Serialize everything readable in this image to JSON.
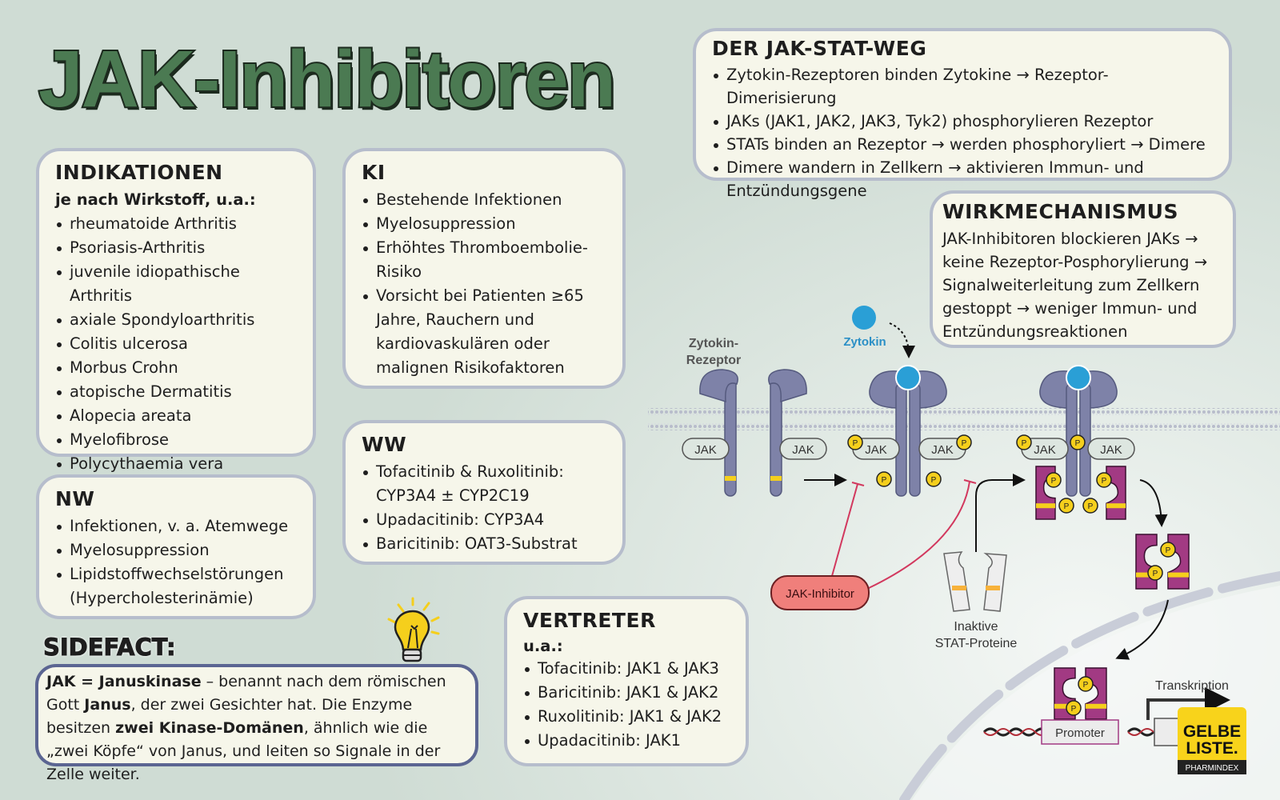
{
  "title": "JAK-Inhibitoren",
  "indikationen": {
    "heading": "INDIKATIONEN",
    "subheading": "je nach Wirkstoff, u.a.:",
    "items": [
      "rheumatoide Arthritis",
      "Psoriasis-Arthritis",
      "juvenile idiopathische Arthritis",
      "axiale Spondyloarthritis",
      "Colitis ulcerosa",
      "Morbus Crohn",
      "atopische Dermatitis",
      "Alopecia areata",
      "Myelofibrose",
      "Polycythaemia vera"
    ]
  },
  "ki": {
    "heading": "KI",
    "items": [
      "Bestehende Infektionen",
      "Myelosuppression",
      "Erhöhtes Thromboembolie-Risiko",
      "Vorsicht bei Patienten ≥65 Jahre, Rauchern und kardiovaskulären oder malignen Risikofaktoren"
    ]
  },
  "nw": {
    "heading": "NW",
    "items": [
      "Infektionen, v. a. Atemwege",
      "Myelosuppression",
      "Lipidstoffwechselstörungen (Hypercholesterinämie)"
    ]
  },
  "ww": {
    "heading": "WW",
    "items": [
      "Tofacitinib & Ruxolitinib: CYP3A4 ± CYP2C19",
      "Upadacitinib: CYP3A4",
      "Baricitinib: OAT3-Substrat"
    ]
  },
  "vertreter": {
    "heading": "VERTRETER",
    "subheading": "u.a.:",
    "items": [
      "Tofacitinib: JAK1 & JAK3",
      "Baricitinib: JAK1 & JAK2",
      "Ruxolitinib: JAK1 & JAK2",
      "Upadacitinib: JAK1"
    ]
  },
  "sidefact": {
    "heading": "SIDEFACT:",
    "b1": "JAK = Januskinase",
    "t1": " – benannt nach dem römischen Gott ",
    "b2": "Janus",
    "t2": ", der zwei Gesichter hat. Die Enzyme besitzen ",
    "b3": "zwei Kinase-Domänen",
    "t3": ", ähnlich wie die „zwei Köpfe“ von Janus, und leiten so Signale in der Zelle weiter.",
    "icon": "lightbulb-icon"
  },
  "jakstat": {
    "heading": "DER JAK-STAT-WEG",
    "items": [
      "Zytokin-Rezeptoren binden Zytokine → Rezeptor-Dimerisierung",
      "JAKs (JAK1, JAK2, JAK3, Tyk2) phosphorylieren Rezeptor",
      "STATs binden an Rezeptor → werden phosphoryliert → Dimere",
      "Dimere wandern in Zellkern → aktivieren Immun- und Entzündungsgene"
    ]
  },
  "wirk": {
    "heading": "WIRKMECHANISMUS",
    "text": "JAK-Inhibitoren blockieren JAKs → keine Rezeptor-Posphorylierung → Signalweiterleitung zum Zellkern gestoppt → weniger Immun- und Entzündungsreaktionen"
  },
  "diagram": {
    "receptor_label_1": "Zytokin-",
    "receptor_label_2": "Rezeptor",
    "cytokine_label": "Zytokin",
    "jak_label": "JAK",
    "p_label": "P",
    "inhibitor_label": "JAK-Inhibitor",
    "inactive_label_1": "Inaktive",
    "inactive_label_2": "STAT-Proteine",
    "promoter_label": "Promoter",
    "transcription_label": "Transkription",
    "colors": {
      "receptor": "#7e82a8",
      "cytokine": "#2a9fd6",
      "stat": "#a23a83",
      "phosphate": "#f5cf1c",
      "inhibitor": "#f07f7b",
      "inhibit_line": "#d2385e"
    }
  },
  "logo": {
    "line1": "GELBE",
    "line2": "LISTE.",
    "line3": "PHARMINDEX"
  }
}
